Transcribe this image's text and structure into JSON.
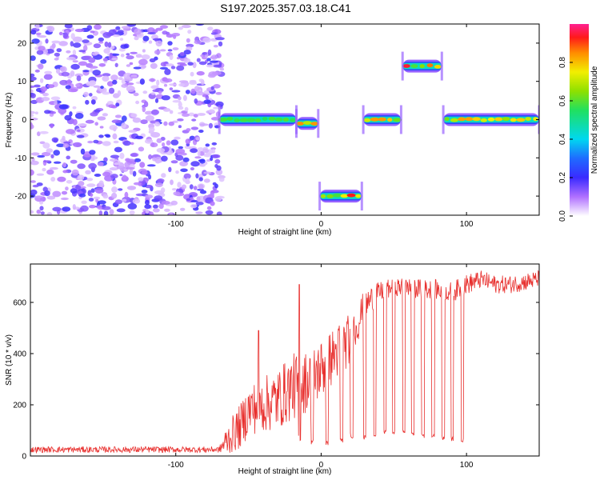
{
  "page_title": "S197.2025.357.03.18.C41",
  "colors": {
    "snr_line": "#e8302e",
    "axis": "#000000",
    "background": "#ffffff"
  },
  "chart_data": [
    {
      "type": "heatmap",
      "title": "S197.2025.357.03.18.C41",
      "xlabel": "Height of straight line (km)",
      "ylabel": "Frequency (Hz)",
      "xlim": [
        -200,
        150
      ],
      "ylim": [
        -25,
        25
      ],
      "x_ticks": [
        -100,
        0,
        100
      ],
      "x_tick_labels": [
        "-100",
        "0",
        "100"
      ],
      "y_ticks": [
        -20,
        -10,
        0,
        10,
        20
      ],
      "y_tick_labels": [
        "-20",
        "-10",
        "0",
        "10",
        "20"
      ],
      "colorbar": {
        "label": "Normalized spectral amplitude",
        "range": [
          0,
          1
        ],
        "ticks": [
          0.0,
          0.2,
          0.4,
          0.6,
          0.8
        ],
        "tick_labels": [
          "0.0",
          "0.2",
          "0.4",
          "0.6",
          "0.8"
        ]
      },
      "noise_region": {
        "x_range": [
          -200,
          -68
        ]
      },
      "segments": [
        {
          "x_start": -70,
          "x_end": -17,
          "freq": 0,
          "peak": 0.6
        },
        {
          "x_start": -17,
          "x_end": -2,
          "freq": -1,
          "peak": 0.9
        },
        {
          "x_start": -1,
          "x_end": 28,
          "freq": -20,
          "peak": 0.95
        },
        {
          "x_start": 29,
          "x_end": 55,
          "freq": 0,
          "peak": 0.85
        },
        {
          "x_start": 56,
          "x_end": 83,
          "freq": 14,
          "peak": 0.95
        },
        {
          "x_start": 84,
          "x_end": 150,
          "freq": 0,
          "peak": 0.85
        }
      ]
    },
    {
      "type": "line",
      "xlabel": "Height of straight line (km)",
      "ylabel": "SNR (10 * v/v)",
      "xlim": [
        -200,
        150
      ],
      "ylim": [
        0,
        750
      ],
      "x_ticks": [
        -100,
        0,
        100
      ],
      "x_tick_labels": [
        "-100",
        "0",
        "100"
      ],
      "y_ticks": [
        0,
        200,
        400,
        600
      ],
      "y_tick_labels": [
        "0",
        "200",
        "400",
        "600"
      ],
      "series": [
        {
          "name": "SNR",
          "color": "#e8302e",
          "x": [
            -200,
            -150,
            -100,
            -70,
            -65,
            -55,
            -50,
            -40,
            -30,
            -20,
            -15,
            -10,
            0,
            10,
            20,
            25,
            30,
            40,
            50,
            60,
            70,
            80,
            90,
            100,
            110,
            120,
            130,
            140,
            150
          ],
          "values": [
            25,
            25,
            25,
            25,
            60,
            120,
            180,
            200,
            220,
            270,
            280,
            290,
            340,
            400,
            460,
            520,
            590,
            640,
            660,
            660,
            650,
            650,
            640,
            670,
            690,
            670,
            670,
            680,
            690
          ],
          "noise": [
            12,
            12,
            12,
            12,
            60,
            90,
            100,
            110,
            120,
            130,
            130,
            120,
            120,
            110,
            100,
            80,
            60,
            40,
            35,
            35,
            40,
            40,
            40,
            40,
            35,
            35,
            35,
            35,
            35
          ],
          "dips": [
            {
              "x": -15,
              "to": 60
            },
            {
              "x": -6,
              "to": 45
            },
            {
              "x": 4,
              "to": 40
            },
            {
              "x": 14,
              "to": 50
            },
            {
              "x": 21,
              "to": 70
            },
            {
              "x": 30,
              "to": 60
            },
            {
              "x": 37,
              "to": 75
            },
            {
              "x": 44,
              "to": 80
            },
            {
              "x": 50,
              "to": 80
            },
            {
              "x": 57,
              "to": 85
            },
            {
              "x": 63,
              "to": 80
            },
            {
              "x": 70,
              "to": 70
            },
            {
              "x": 77,
              "to": 65
            },
            {
              "x": 84,
              "to": 60
            },
            {
              "x": 90,
              "to": 55
            },
            {
              "x": 97,
              "to": 55
            }
          ],
          "spikes": [
            {
              "x": -43,
              "to": 490
            },
            {
              "x": -15,
              "to": 670
            }
          ]
        }
      ]
    }
  ]
}
